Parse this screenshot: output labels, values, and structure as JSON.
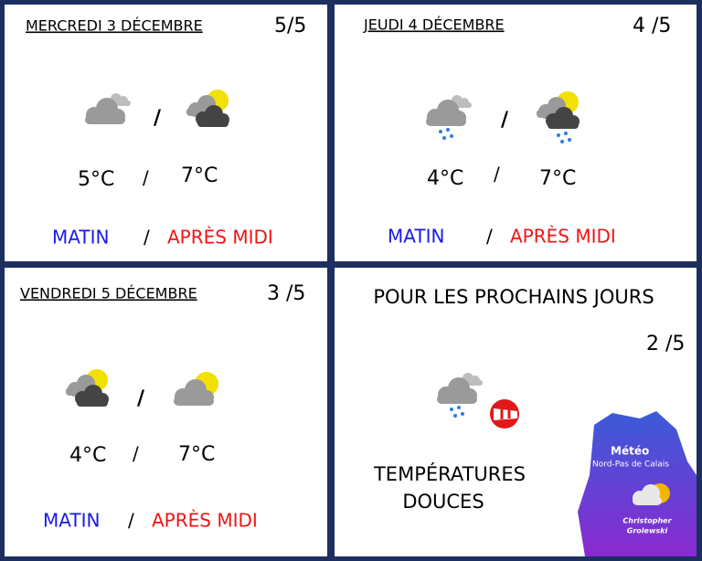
{
  "separator": "/",
  "panels": [
    {
      "date": "MERCREDI 3 DÉCEMBRE",
      "rating": "5/5",
      "temp_morning": "5°C",
      "temp_afternoon": "7°C",
      "morning": "MATIN",
      "afternoon": "APRÈS MIDI"
    },
    {
      "date": "JEUDI 4 DÉCEMBRE",
      "rating": "4 /5",
      "temp_morning": "4°C",
      "temp_afternoon": "7°C",
      "morning": "MATIN",
      "afternoon": "APRÈS MIDI"
    },
    {
      "date": "VENDREDI 5 DÉCEMBRE",
      "rating": "3 /5",
      "temp_morning": "4°C",
      "temp_afternoon": "7°C",
      "morning": "MATIN",
      "afternoon": "APRÈS MIDI"
    }
  ],
  "outlook": {
    "title": "POUR LES PROCHAINS JOURS",
    "rating": "2 /5",
    "line1": "TEMPÉRATURES",
    "line2": "DOUCES"
  },
  "logo": {
    "title": "Météo",
    "region": "Nord-Pas de Calais",
    "author1": "Christopher",
    "author2": "Grolewski"
  }
}
